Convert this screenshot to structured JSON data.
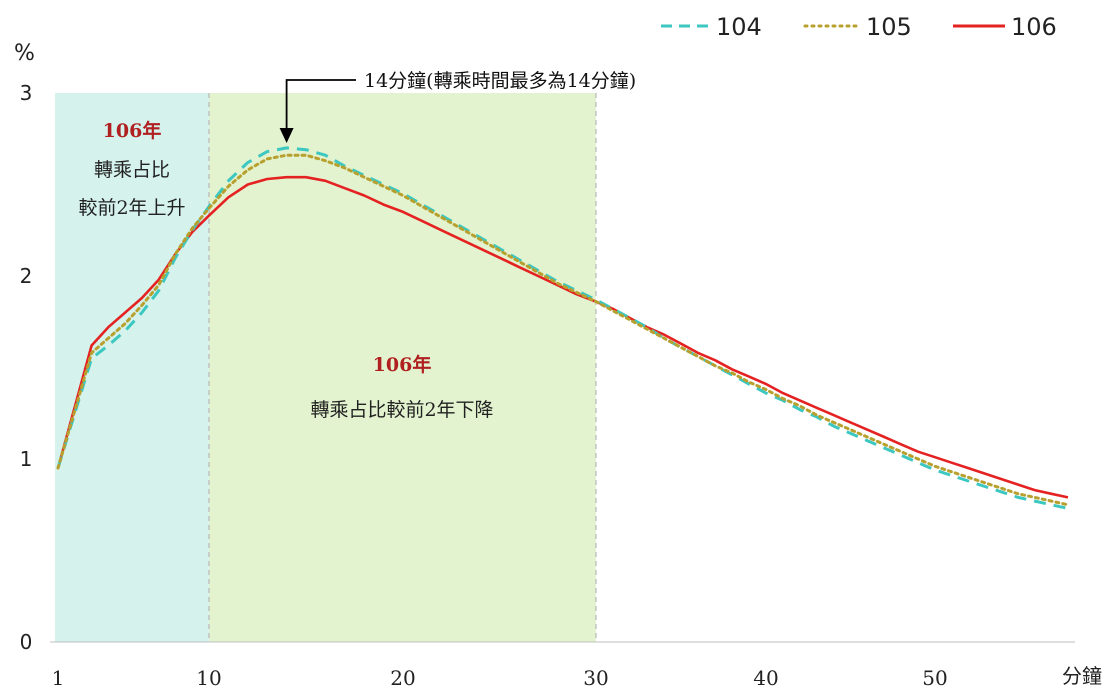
{
  "chart_data": {
    "type": "line",
    "ylabel": "%",
    "xlabel": "分鐘",
    "xlim": [
      1,
      58
    ],
    "ylim": [
      0,
      3
    ],
    "x_ticks": [
      "1",
      "10",
      "20",
      "30",
      "40",
      "50"
    ],
    "y_ticks": [
      "0",
      "1",
      "2",
      "3"
    ],
    "grid": false,
    "legend": "top-right",
    "series": [
      {
        "name": "104",
        "style": "dashed",
        "color": "#3cc7c0",
        "x": [
          1,
          3,
          4,
          5,
          6,
          7,
          8,
          9,
          10,
          11,
          12,
          13,
          14,
          15,
          16,
          17,
          18,
          19,
          20,
          21,
          22,
          23,
          24,
          25,
          26,
          27,
          28,
          29,
          30,
          31,
          32,
          33,
          34,
          35,
          36,
          37,
          38,
          39,
          40,
          41,
          42,
          43,
          44,
          45,
          46,
          47,
          48,
          49,
          50,
          51,
          52,
          53,
          54,
          55,
          56,
          57,
          58
        ],
        "values": [
          0.95,
          1.55,
          1.62,
          1.7,
          1.8,
          1.92,
          2.1,
          2.25,
          2.38,
          2.52,
          2.62,
          2.68,
          2.7,
          2.69,
          2.66,
          2.6,
          2.55,
          2.5,
          2.45,
          2.39,
          2.33,
          2.27,
          2.21,
          2.15,
          2.09,
          2.03,
          1.97,
          1.92,
          1.87,
          1.82,
          1.77,
          1.72,
          1.66,
          1.61,
          1.56,
          1.51,
          1.46,
          1.41,
          1.36,
          1.32,
          1.27,
          1.23,
          1.18,
          1.14,
          1.1,
          1.06,
          1.02,
          0.98,
          0.94,
          0.91,
          0.88,
          0.85,
          0.82,
          0.79,
          0.77,
          0.75,
          0.73
        ]
      },
      {
        "name": "105",
        "style": "dotted",
        "color": "#b8a02e",
        "x": [
          1,
          3,
          4,
          5,
          6,
          7,
          8,
          9,
          10,
          11,
          12,
          13,
          14,
          15,
          16,
          17,
          18,
          19,
          20,
          21,
          22,
          23,
          24,
          25,
          26,
          27,
          28,
          29,
          30,
          31,
          32,
          33,
          34,
          35,
          36,
          37,
          38,
          39,
          40,
          41,
          42,
          43,
          44,
          45,
          46,
          47,
          48,
          49,
          50,
          51,
          52,
          53,
          54,
          55,
          56,
          57,
          58
        ],
        "values": [
          0.95,
          1.58,
          1.66,
          1.74,
          1.84,
          1.95,
          2.12,
          2.26,
          2.37,
          2.49,
          2.58,
          2.64,
          2.66,
          2.66,
          2.63,
          2.59,
          2.54,
          2.49,
          2.44,
          2.38,
          2.32,
          2.26,
          2.2,
          2.14,
          2.08,
          2.02,
          1.96,
          1.91,
          1.86,
          1.81,
          1.76,
          1.71,
          1.66,
          1.61,
          1.56,
          1.51,
          1.47,
          1.42,
          1.38,
          1.33,
          1.29,
          1.24,
          1.2,
          1.16,
          1.12,
          1.08,
          1.04,
          1.0,
          0.96,
          0.93,
          0.9,
          0.87,
          0.84,
          0.81,
          0.79,
          0.77,
          0.75
        ]
      },
      {
        "name": "106",
        "style": "solid",
        "color": "#e52222",
        "x": [
          1,
          3,
          4,
          5,
          6,
          7,
          8,
          9,
          10,
          11,
          12,
          13,
          14,
          15,
          16,
          17,
          18,
          19,
          20,
          21,
          22,
          23,
          24,
          25,
          26,
          27,
          28,
          29,
          30,
          31,
          32,
          33,
          34,
          35,
          36,
          37,
          38,
          39,
          40,
          41,
          42,
          43,
          44,
          45,
          46,
          47,
          48,
          49,
          50,
          51,
          52,
          53,
          54,
          55,
          56,
          57,
          58
        ],
        "values": [
          0.95,
          1.62,
          1.72,
          1.8,
          1.88,
          1.98,
          2.12,
          2.24,
          2.33,
          2.43,
          2.5,
          2.53,
          2.54,
          2.54,
          2.52,
          2.48,
          2.44,
          2.39,
          2.35,
          2.3,
          2.25,
          2.2,
          2.15,
          2.1,
          2.05,
          2.0,
          1.95,
          1.9,
          1.86,
          1.82,
          1.77,
          1.72,
          1.68,
          1.63,
          1.58,
          1.54,
          1.49,
          1.45,
          1.41,
          1.36,
          1.32,
          1.28,
          1.24,
          1.2,
          1.16,
          1.12,
          1.08,
          1.04,
          1.01,
          0.98,
          0.95,
          0.92,
          0.89,
          0.86,
          0.83,
          0.81,
          0.79
        ]
      }
    ],
    "regions": [
      {
        "x_start": 1,
        "x_end": 10,
        "color": "#d5f2ec",
        "title": "106年",
        "lines": [
          "轉乘占比",
          "較前2年上升"
        ]
      },
      {
        "x_start": 10,
        "x_end": 30,
        "color": "#e3f3cf",
        "title": "106年",
        "lines": [
          "轉乘占比較前2年下降"
        ]
      }
    ],
    "annotation": {
      "text": "14分鐘(轉乘時間最多為14分鐘)",
      "x": 14
    }
  }
}
